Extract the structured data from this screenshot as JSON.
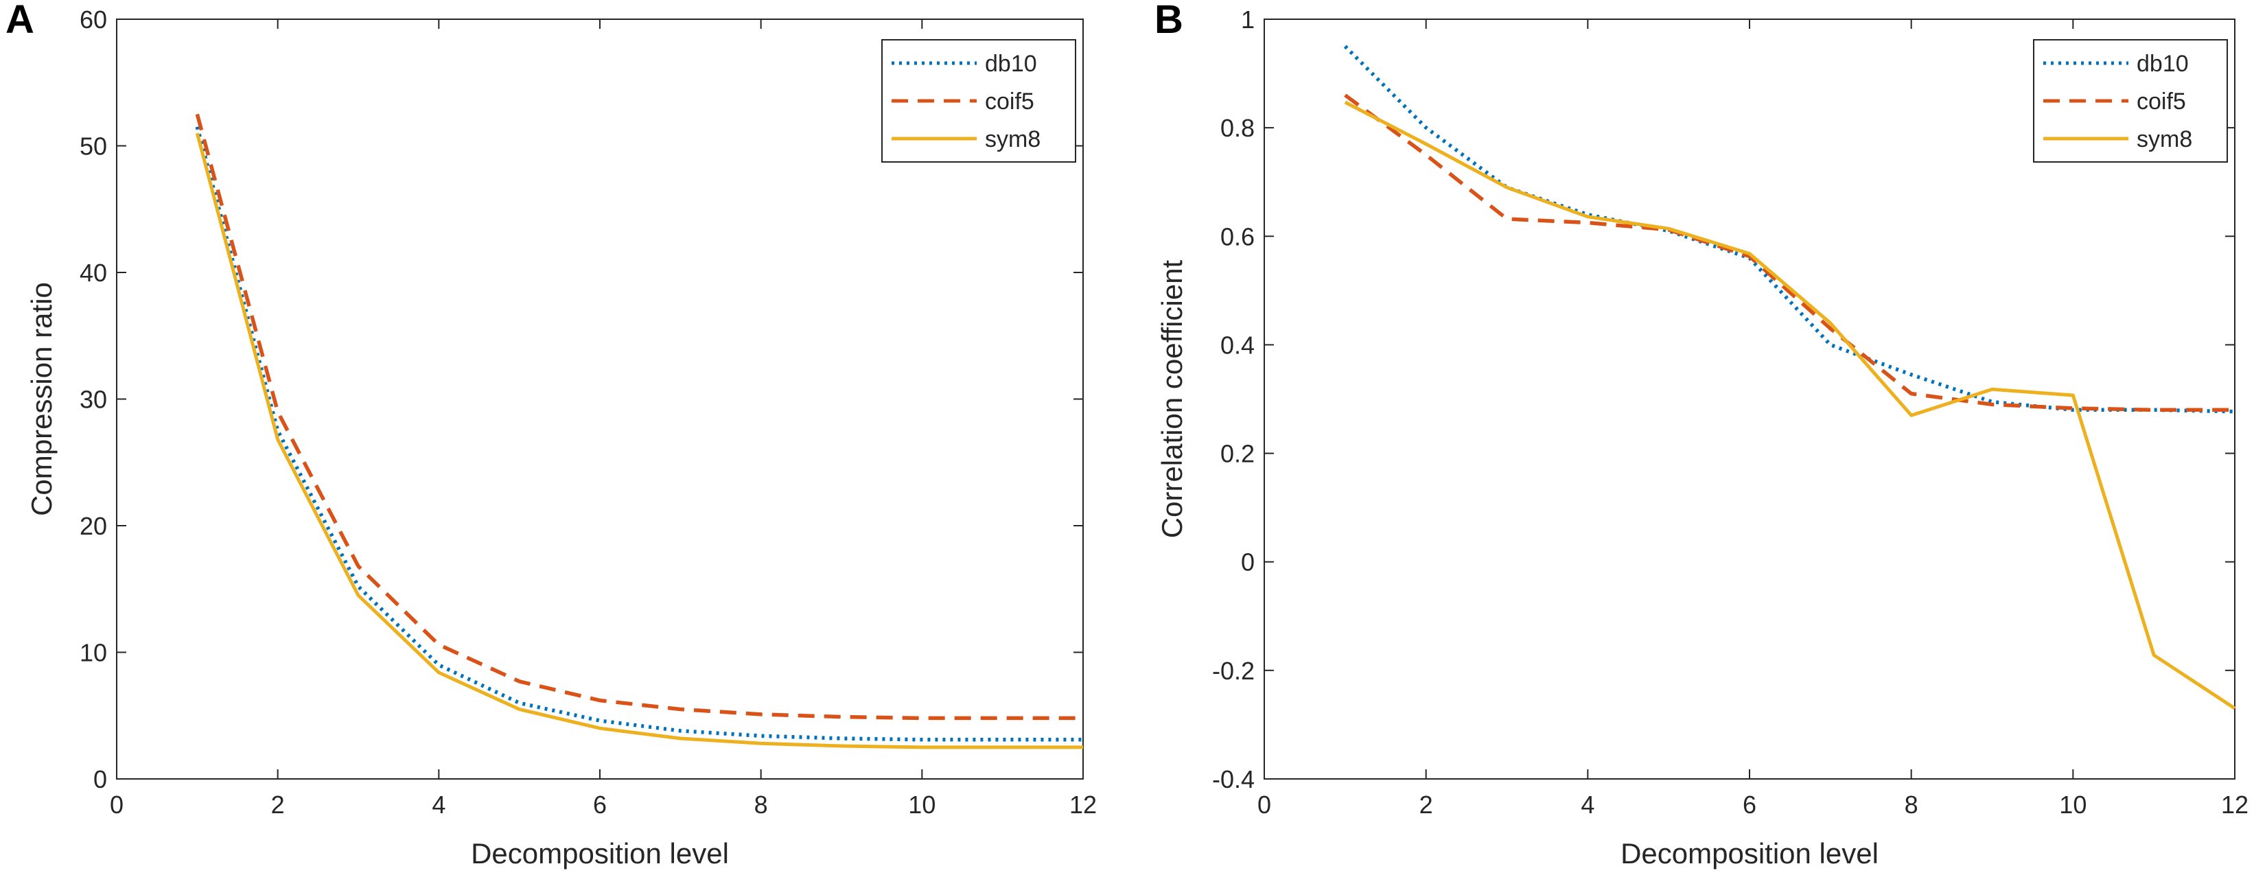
{
  "colors": {
    "db10": "#0072bd",
    "coif5": "#d95319",
    "sym8": "#edb120",
    "axis": "#262626"
  },
  "chart_data": [
    {
      "type": "line",
      "panel_label": "A",
      "title": "",
      "xlabel": "Decomposition level",
      "ylabel": "Compression ratio",
      "xlim": [
        0,
        12
      ],
      "ylim": [
        0,
        60
      ],
      "xticks": [
        "0",
        "2",
        "4",
        "6",
        "8",
        "10",
        "12"
      ],
      "yticks": [
        "0",
        "10",
        "20",
        "30",
        "40",
        "50",
        "60"
      ],
      "grid": false,
      "legend_position": "top-right",
      "x": [
        1,
        2,
        3,
        4,
        5,
        6,
        7,
        8,
        9,
        10,
        11,
        12
      ],
      "series": [
        {
          "name": "db10",
          "style": "dotted",
          "color_key": "db10",
          "values": [
            51.5,
            27.5,
            15.2,
            9.0,
            6.0,
            4.6,
            3.8,
            3.4,
            3.2,
            3.1,
            3.1,
            3.1
          ]
        },
        {
          "name": "coif5",
          "style": "dashed",
          "color_key": "coif5",
          "values": [
            52.5,
            29.0,
            16.8,
            10.6,
            7.7,
            6.2,
            5.5,
            5.1,
            4.9,
            4.8,
            4.8,
            4.8
          ]
        },
        {
          "name": "sym8",
          "style": "solid",
          "color_key": "sym8",
          "values": [
            51.0,
            26.8,
            14.5,
            8.4,
            5.5,
            4.0,
            3.2,
            2.8,
            2.6,
            2.5,
            2.5,
            2.5
          ]
        }
      ]
    },
    {
      "type": "line",
      "panel_label": "B",
      "title": "",
      "xlabel": "Decomposition level",
      "ylabel": "Correlation coefficient",
      "xlim": [
        0,
        12
      ],
      "ylim": [
        -0.4,
        1
      ],
      "xticks": [
        "0",
        "2",
        "4",
        "6",
        "8",
        "10",
        "12"
      ],
      "yticks": [
        "-0.4",
        "-0.2",
        "0",
        "0.2",
        "0.4",
        "0.6",
        "0.8",
        "1"
      ],
      "grid": false,
      "legend_position": "top-right",
      "x": [
        1,
        2,
        3,
        4,
        5,
        6,
        7,
        8,
        9,
        10,
        11,
        12
      ],
      "series": [
        {
          "name": "db10",
          "style": "dotted",
          "color_key": "db10",
          "values": [
            0.95,
            0.8,
            0.69,
            0.64,
            0.61,
            0.56,
            0.4,
            0.345,
            0.295,
            0.28,
            0.28,
            0.277
          ]
        },
        {
          "name": "coif5",
          "style": "dashed",
          "color_key": "coif5",
          "values": [
            0.86,
            0.75,
            0.632,
            0.625,
            0.612,
            0.563,
            0.43,
            0.31,
            0.29,
            0.283,
            0.28,
            0.28
          ]
        },
        {
          "name": "sym8",
          "style": "solid",
          "color_key": "sym8",
          "values": [
            0.847,
            0.77,
            0.69,
            0.636,
            0.614,
            0.568,
            0.44,
            0.27,
            0.318,
            0.307,
            -0.172,
            -0.27
          ]
        }
      ]
    }
  ]
}
